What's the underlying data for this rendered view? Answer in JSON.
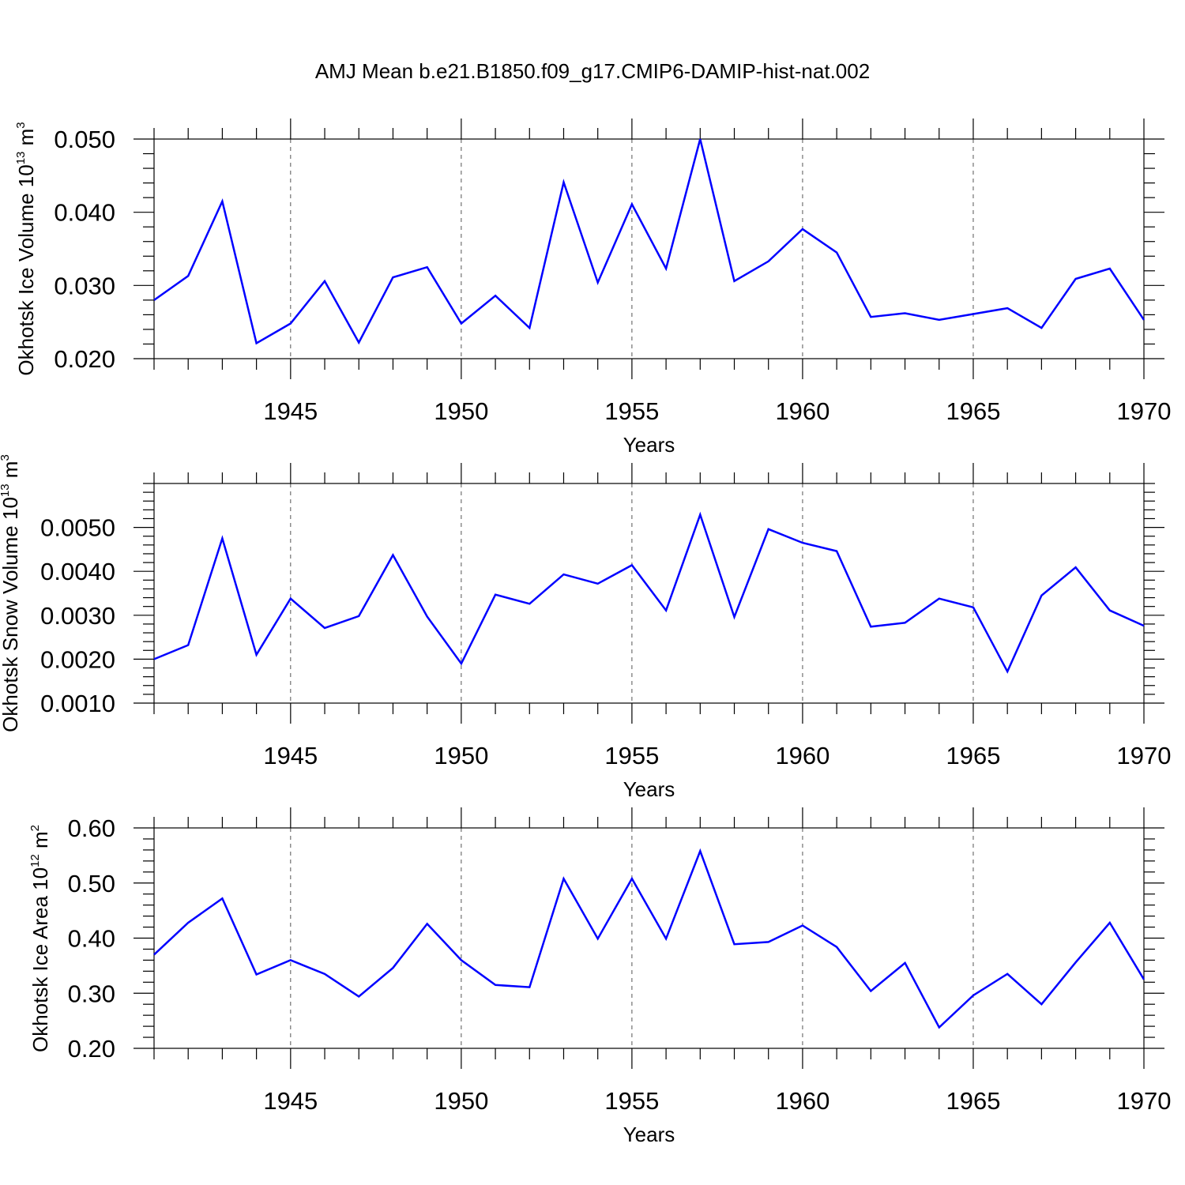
{
  "figure": {
    "title": "AMJ Mean b.e21.B1850.f09_g17.CMIP6-DAMIP-hist-nat.002",
    "line_color": "#0000ff"
  },
  "chart_data": [
    {
      "type": "line",
      "title": "",
      "xlabel": "Years",
      "ylabel": {
        "main": "Okhotsk Ice Volume 10",
        "exp": "13",
        "unit": " m",
        "unit_exp": "3"
      },
      "xlim": [
        1941,
        1970
      ],
      "ylim": [
        0.02,
        0.05
      ],
      "xticks": [
        1945,
        1950,
        1955,
        1960,
        1965,
        1970
      ],
      "yticks": [
        0.02,
        0.03,
        0.04,
        0.05
      ],
      "ytick_labels": [
        "0.020",
        "0.030",
        "0.040",
        "0.050"
      ],
      "grid": "x-dashed",
      "series": [
        {
          "name": "Okhotsk Ice Volume",
          "x": [
            1941,
            1942,
            1943,
            1944,
            1945,
            1946,
            1947,
            1948,
            1949,
            1950,
            1951,
            1952,
            1953,
            1954,
            1955,
            1956,
            1957,
            1958,
            1959,
            1960,
            1961,
            1962,
            1963,
            1964,
            1965,
            1966,
            1967,
            1968,
            1969,
            1970
          ],
          "values": [
            0.028,
            0.0313,
            0.0415,
            0.0221,
            0.0248,
            0.0306,
            0.0222,
            0.0311,
            0.0325,
            0.0248,
            0.0286,
            0.0242,
            0.0441,
            0.0304,
            0.0411,
            0.0323,
            0.05,
            0.0306,
            0.0333,
            0.0377,
            0.0345,
            0.0257,
            0.0262,
            0.0253,
            0.0261,
            0.0269,
            0.0242,
            0.0309,
            0.0323,
            0.0253
          ]
        }
      ]
    },
    {
      "type": "line",
      "title": "",
      "xlabel": "Years",
      "ylabel": {
        "main": "Okhotsk Snow Volume 10",
        "exp": "13",
        "unit": " m",
        "unit_exp": "3"
      },
      "xlim": [
        1941,
        1970
      ],
      "ylim": [
        0.001,
        0.006
      ],
      "xticks": [
        1945,
        1950,
        1955,
        1960,
        1965,
        1970
      ],
      "yticks": [
        0.001,
        0.002,
        0.003,
        0.004,
        0.005
      ],
      "ytick_labels": [
        "0.0010",
        "0.0020",
        "0.0030",
        "0.0040",
        "0.0050"
      ],
      "grid": "x-dashed",
      "series": [
        {
          "name": "Okhotsk Snow Volume",
          "x": [
            1941,
            1942,
            1943,
            1944,
            1945,
            1946,
            1947,
            1948,
            1949,
            1950,
            1951,
            1952,
            1953,
            1954,
            1955,
            1956,
            1957,
            1958,
            1959,
            1960,
            1961,
            1962,
            1963,
            1964,
            1965,
            1966,
            1967,
            1968,
            1969,
            1970
          ],
          "values": [
            0.002,
            0.00232,
            0.00475,
            0.0021,
            0.00338,
            0.00271,
            0.00298,
            0.00437,
            0.00297,
            0.0019,
            0.00347,
            0.00326,
            0.00393,
            0.00372,
            0.00414,
            0.00311,
            0.00529,
            0.00296,
            0.00496,
            0.00465,
            0.00446,
            0.00274,
            0.00283,
            0.00338,
            0.00318,
            0.00172,
            0.00345,
            0.00409,
            0.00311,
            0.00276
          ]
        }
      ]
    },
    {
      "type": "line",
      "title": "",
      "xlabel": "Years",
      "ylabel": {
        "main": "Okhotsk Ice Area 10",
        "exp": "12",
        "unit": " m",
        "unit_exp": "2"
      },
      "xlim": [
        1941,
        1970
      ],
      "ylim": [
        0.2,
        0.6
      ],
      "xticks": [
        1945,
        1950,
        1955,
        1960,
        1965,
        1970
      ],
      "yticks": [
        0.2,
        0.3,
        0.4,
        0.5,
        0.6
      ],
      "ytick_labels": [
        "0.20",
        "0.30",
        "0.40",
        "0.50",
        "0.60"
      ],
      "grid": "x-dashed",
      "series": [
        {
          "name": "Okhotsk Ice Area",
          "x": [
            1941,
            1942,
            1943,
            1944,
            1945,
            1946,
            1947,
            1948,
            1949,
            1950,
            1951,
            1952,
            1953,
            1954,
            1955,
            1956,
            1957,
            1958,
            1959,
            1960,
            1961,
            1962,
            1963,
            1964,
            1965,
            1966,
            1967,
            1968,
            1969,
            1970
          ],
          "values": [
            0.37,
            0.428,
            0.472,
            0.334,
            0.36,
            0.335,
            0.294,
            0.346,
            0.426,
            0.36,
            0.315,
            0.311,
            0.508,
            0.399,
            0.508,
            0.399,
            0.558,
            0.389,
            0.393,
            0.423,
            0.384,
            0.304,
            0.355,
            0.238,
            0.296,
            0.335,
            0.28,
            0.356,
            0.428,
            0.325
          ]
        }
      ]
    }
  ]
}
